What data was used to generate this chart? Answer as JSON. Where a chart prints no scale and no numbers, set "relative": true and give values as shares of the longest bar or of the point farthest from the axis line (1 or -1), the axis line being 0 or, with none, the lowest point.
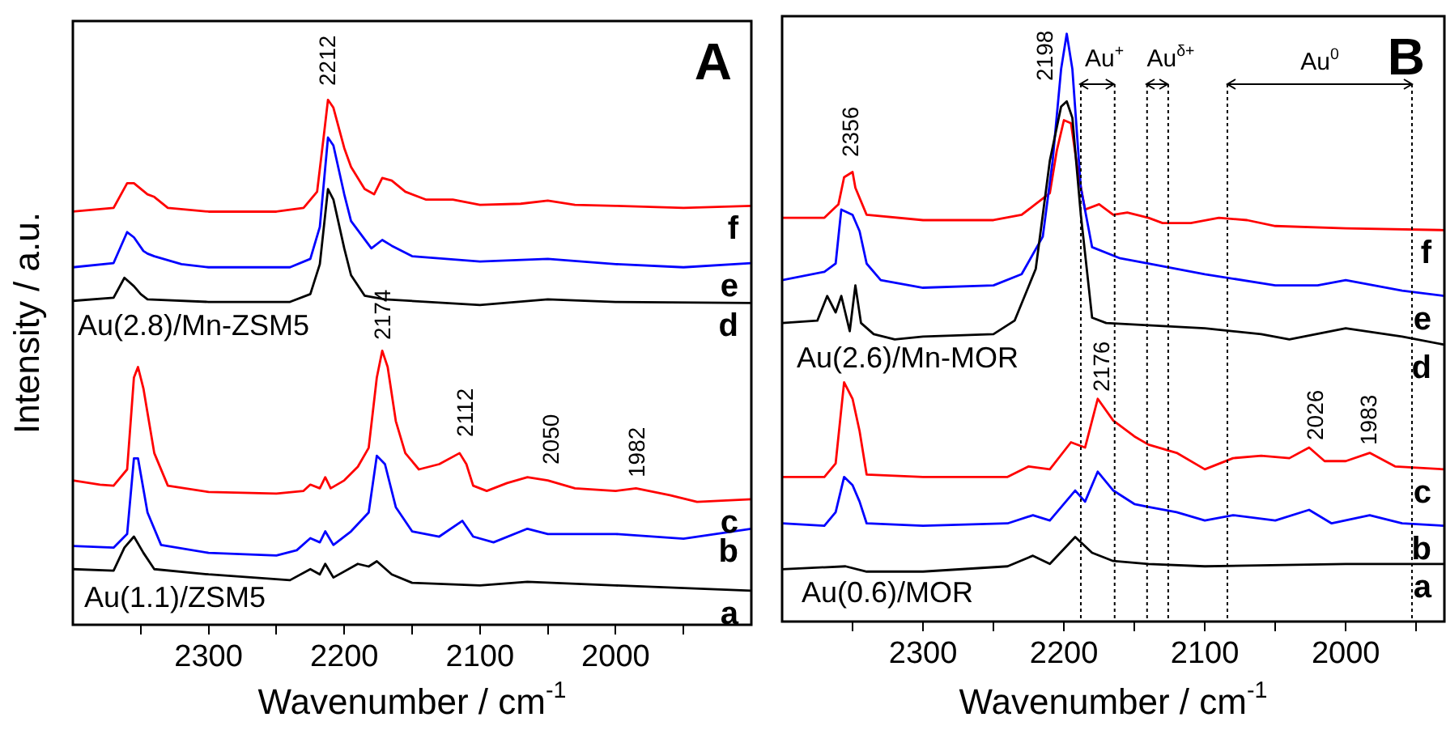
{
  "chart_data": [
    {
      "type": "line",
      "title": "A",
      "xlabel": "Wavenumber / cm$^{-1}$",
      "ylabel": "Intensity / a.u.",
      "relative": true,
      "xlim": [
        2400,
        1900
      ],
      "xticks": [
        {
          "value": 2350,
          "label": null
        },
        2300,
        {
          "value": 2250,
          "label": null
        },
        2200,
        {
          "value": 2150,
          "label": null
        },
        2100,
        {
          "value": 2050,
          "label": null
        },
        2000,
        {
          "value": 1950,
          "label": null
        }
      ],
      "series": [
        {
          "name": "a",
          "color": "#000000",
          "x": [
            2400,
            2370,
            2362,
            2355,
            2348,
            2340,
            2300,
            2240,
            2225,
            2218,
            2214,
            2208,
            2190,
            2182,
            2176,
            2165,
            2150,
            2100,
            2065,
            2000,
            1900
          ],
          "values": [
            0.106,
            0.103,
            0.147,
            0.168,
            0.137,
            0.106,
            0.096,
            0.085,
            0.106,
            0.096,
            0.116,
            0.09,
            0.116,
            0.111,
            0.121,
            0.096,
            0.08,
            0.075,
            0.082,
            0.075,
            0.065
          ]
        },
        {
          "name": "b",
          "color": "#0000ff",
          "x": [
            2400,
            2370,
            2360,
            2355,
            2352,
            2345,
            2335,
            2300,
            2250,
            2235,
            2225,
            2218,
            2214,
            2208,
            2195,
            2182,
            2176,
            2170,
            2162,
            2150,
            2130,
            2113,
            2105,
            2090,
            2065,
            2050,
            2000,
            1950,
            1900
          ],
          "values": [
            0.15,
            0.147,
            0.173,
            0.317,
            0.317,
            0.214,
            0.152,
            0.137,
            0.132,
            0.142,
            0.165,
            0.157,
            0.178,
            0.152,
            0.178,
            0.214,
            0.322,
            0.306,
            0.224,
            0.178,
            0.168,
            0.198,
            0.168,
            0.157,
            0.183,
            0.173,
            0.173,
            0.164,
            0.183
          ]
        },
        {
          "name": "c",
          "color": "#ff0000",
          "x": [
            2400,
            2380,
            2370,
            2360,
            2355,
            2352,
            2348,
            2340,
            2330,
            2300,
            2250,
            2230,
            2225,
            2218,
            2214,
            2210,
            2200,
            2190,
            2182,
            2176,
            2172,
            2168,
            2162,
            2155,
            2145,
            2130,
            2115,
            2110,
            2105,
            2095,
            2080,
            2065,
            2050,
            2030,
            2000,
            1985,
            1960,
            1940,
            1900
          ],
          "values": [
            0.275,
            0.267,
            0.265,
            0.296,
            0.471,
            0.491,
            0.45,
            0.327,
            0.265,
            0.253,
            0.25,
            0.255,
            0.267,
            0.26,
            0.281,
            0.26,
            0.275,
            0.301,
            0.337,
            0.471,
            0.522,
            0.491,
            0.388,
            0.327,
            0.296,
            0.306,
            0.327,
            0.306,
            0.265,
            0.255,
            0.27,
            0.281,
            0.275,
            0.26,
            0.255,
            0.26,
            0.247,
            0.234,
            0.239
          ]
        },
        {
          "name": "d",
          "color": "#000000",
          "x": [
            2400,
            2370,
            2362,
            2355,
            2350,
            2345,
            2300,
            2240,
            2225,
            2218,
            2212,
            2208,
            2200,
            2195,
            2185,
            2170,
            2100,
            2050,
            2000,
            1900
          ],
          "values": [
            0.617,
            0.623,
            0.661,
            0.645,
            0.63,
            0.62,
            0.615,
            0.615,
            0.63,
            0.687,
            0.83,
            0.81,
            0.717,
            0.666,
            0.627,
            0.62,
            0.609,
            0.62,
            0.615,
            0.613
          ]
        },
        {
          "name": "e",
          "color": "#0000ff",
          "x": [
            2400,
            2370,
            2360,
            2355,
            2348,
            2345,
            2340,
            2320,
            2300,
            2240,
            2225,
            2218,
            2212,
            2208,
            2200,
            2195,
            2180,
            2172,
            2165,
            2150,
            2100,
            2050,
            2000,
            1950,
            1900
          ],
          "values": [
            0.681,
            0.689,
            0.748,
            0.738,
            0.712,
            0.707,
            0.702,
            0.687,
            0.681,
            0.681,
            0.697,
            0.758,
            0.928,
            0.913,
            0.82,
            0.769,
            0.717,
            0.733,
            0.722,
            0.702,
            0.692,
            0.697,
            0.687,
            0.681,
            0.689
          ]
        },
        {
          "name": "f",
          "color": "#ff0000",
          "x": [
            2400,
            2370,
            2360,
            2355,
            2345,
            2340,
            2330,
            2300,
            2250,
            2230,
            2220,
            2215,
            2212,
            2208,
            2200,
            2195,
            2185,
            2178,
            2172,
            2165,
            2155,
            2140,
            2120,
            2100,
            2070,
            2050,
            2030,
            2000,
            1950,
            1900
          ],
          "values": [
            0.787,
            0.794,
            0.841,
            0.841,
            0.82,
            0.815,
            0.794,
            0.787,
            0.787,
            0.794,
            0.825,
            0.933,
            1.0,
            0.985,
            0.908,
            0.872,
            0.83,
            0.82,
            0.851,
            0.846,
            0.825,
            0.81,
            0.81,
            0.8,
            0.802,
            0.808,
            0.8,
            0.798,
            0.794,
            0.798
          ]
        }
      ],
      "annotations": [
        "2212",
        "2174",
        "2112",
        "2050",
        "1982",
        "Au(2.8)/Mn-ZSM5",
        "Au(1.1)/ZSM5"
      ]
    },
    {
      "type": "line",
      "title": "B",
      "xlabel": "Wavenumber / cm$^{-1}$",
      "relative": true,
      "xlim": [
        2400,
        1930
      ],
      "xticks": [
        {
          "value": 2350,
          "label": null
        },
        2300,
        {
          "value": 2250,
          "label": null
        },
        2200,
        {
          "value": 2150,
          "label": null
        },
        2100,
        {
          "value": 2050,
          "label": null
        },
        2000,
        {
          "value": 1950,
          "label": null
        }
      ],
      "series": [
        {
          "name": "a",
          "color": "#000000",
          "x": [
            2400,
            2355,
            2340,
            2300,
            2240,
            2222,
            2210,
            2192,
            2180,
            2165,
            2140,
            2100,
            2000,
            1930
          ],
          "values": [
            0.089,
            0.094,
            0.085,
            0.085,
            0.094,
            0.112,
            0.098,
            0.144,
            0.117,
            0.103,
            0.098,
            0.094,
            0.098,
            0.098
          ]
        },
        {
          "name": "b",
          "color": "#0000ff",
          "x": [
            2400,
            2370,
            2362,
            2356,
            2350,
            2345,
            2340,
            2300,
            2240,
            2222,
            2210,
            2192,
            2185,
            2176,
            2165,
            2150,
            2140,
            2120,
            2100,
            2080,
            2050,
            2026,
            2010,
            1983,
            1960,
            1930
          ],
          "values": [
            0.167,
            0.163,
            0.186,
            0.246,
            0.232,
            0.204,
            0.167,
            0.163,
            0.167,
            0.181,
            0.172,
            0.223,
            0.204,
            0.255,
            0.223,
            0.2,
            0.195,
            0.186,
            0.172,
            0.181,
            0.172,
            0.19,
            0.167,
            0.181,
            0.167,
            0.163
          ]
        },
        {
          "name": "c",
          "color": "#ff0000",
          "x": [
            2400,
            2370,
            2362,
            2356,
            2350,
            2345,
            2340,
            2300,
            2240,
            2225,
            2210,
            2195,
            2185,
            2176,
            2165,
            2150,
            2140,
            2120,
            2100,
            2080,
            2060,
            2040,
            2026,
            2015,
            2000,
            1983,
            1965,
            1930
          ],
          "values": [
            0.246,
            0.246,
            0.269,
            0.407,
            0.379,
            0.324,
            0.25,
            0.246,
            0.246,
            0.264,
            0.259,
            0.305,
            0.296,
            0.379,
            0.342,
            0.315,
            0.301,
            0.287,
            0.259,
            0.278,
            0.282,
            0.278,
            0.296,
            0.273,
            0.273,
            0.287,
            0.264,
            0.259
          ]
        },
        {
          "name": "d",
          "color": "#000000",
          "x": [
            2400,
            2375,
            2368,
            2362,
            2358,
            2352,
            2348,
            2344,
            2335,
            2320,
            2300,
            2250,
            2235,
            2220,
            2210,
            2202,
            2198,
            2194,
            2188,
            2180,
            2170,
            2100,
            2060,
            2040,
            2000,
            1960,
            1930
          ],
          "values": [
            0.508,
            0.512,
            0.554,
            0.526,
            0.554,
            0.494,
            0.572,
            0.508,
            0.489,
            0.48,
            0.485,
            0.489,
            0.512,
            0.6,
            0.784,
            0.876,
            0.885,
            0.857,
            0.692,
            0.517,
            0.508,
            0.499,
            0.489,
            0.48,
            0.499,
            0.485,
            0.471
          ]
        },
        {
          "name": "e",
          "color": "#0000ff",
          "x": [
            2400,
            2370,
            2362,
            2358,
            2350,
            2345,
            2340,
            2330,
            2300,
            2250,
            2230,
            2215,
            2208,
            2202,
            2198,
            2194,
            2188,
            2180,
            2160,
            2140,
            2100,
            2050,
            2020,
            2000,
            1960,
            1930
          ],
          "values": [
            0.581,
            0.595,
            0.609,
            0.701,
            0.692,
            0.664,
            0.609,
            0.581,
            0.568,
            0.572,
            0.591,
            0.655,
            0.784,
            0.94,
            1.0,
            0.94,
            0.738,
            0.637,
            0.618,
            0.609,
            0.591,
            0.572,
            0.572,
            0.581,
            0.563,
            0.554
          ]
        },
        {
          "name": "f",
          "color": "#ff0000",
          "x": [
            2400,
            2370,
            2360,
            2356,
            2350,
            2348,
            2340,
            2300,
            2250,
            2230,
            2210,
            2205,
            2200,
            2195,
            2190,
            2185,
            2175,
            2165,
            2155,
            2140,
            2130,
            2110,
            2090,
            2070,
            2050,
            2000,
            1930
          ],
          "values": [
            0.687,
            0.687,
            0.71,
            0.756,
            0.765,
            0.738,
            0.692,
            0.683,
            0.683,
            0.692,
            0.729,
            0.802,
            0.853,
            0.848,
            0.765,
            0.701,
            0.71,
            0.692,
            0.696,
            0.687,
            0.678,
            0.678,
            0.687,
            0.683,
            0.673,
            0.669,
            0.666
          ]
        }
      ],
      "ref_lines": [
        {
          "axis": "x",
          "value": 2188,
          "color": "#000000",
          "line_style": "dotted"
        },
        {
          "axis": "x",
          "value": 2164,
          "color": "#000000",
          "line_style": "dotted"
        },
        {
          "axis": "x",
          "value": 2141,
          "color": "#000000",
          "line_style": "dotted"
        },
        {
          "axis": "x",
          "value": 2126,
          "color": "#000000",
          "line_style": "dotted"
        },
        {
          "axis": "x",
          "value": 2084,
          "color": "#000000",
          "line_style": "dotted"
        },
        {
          "axis": "x",
          "value": 1953,
          "color": "#000000",
          "line_style": "dotted"
        }
      ],
      "annotations": [
        "2198",
        "2356",
        "2176",
        "2026",
        "1983",
        "Au(2.6)/Mn-MOR",
        "Au(0.6)/MOR",
        "Au$^{+}$",
        "Au$^{δ+}$",
        "Au$^{0}$"
      ]
    }
  ]
}
